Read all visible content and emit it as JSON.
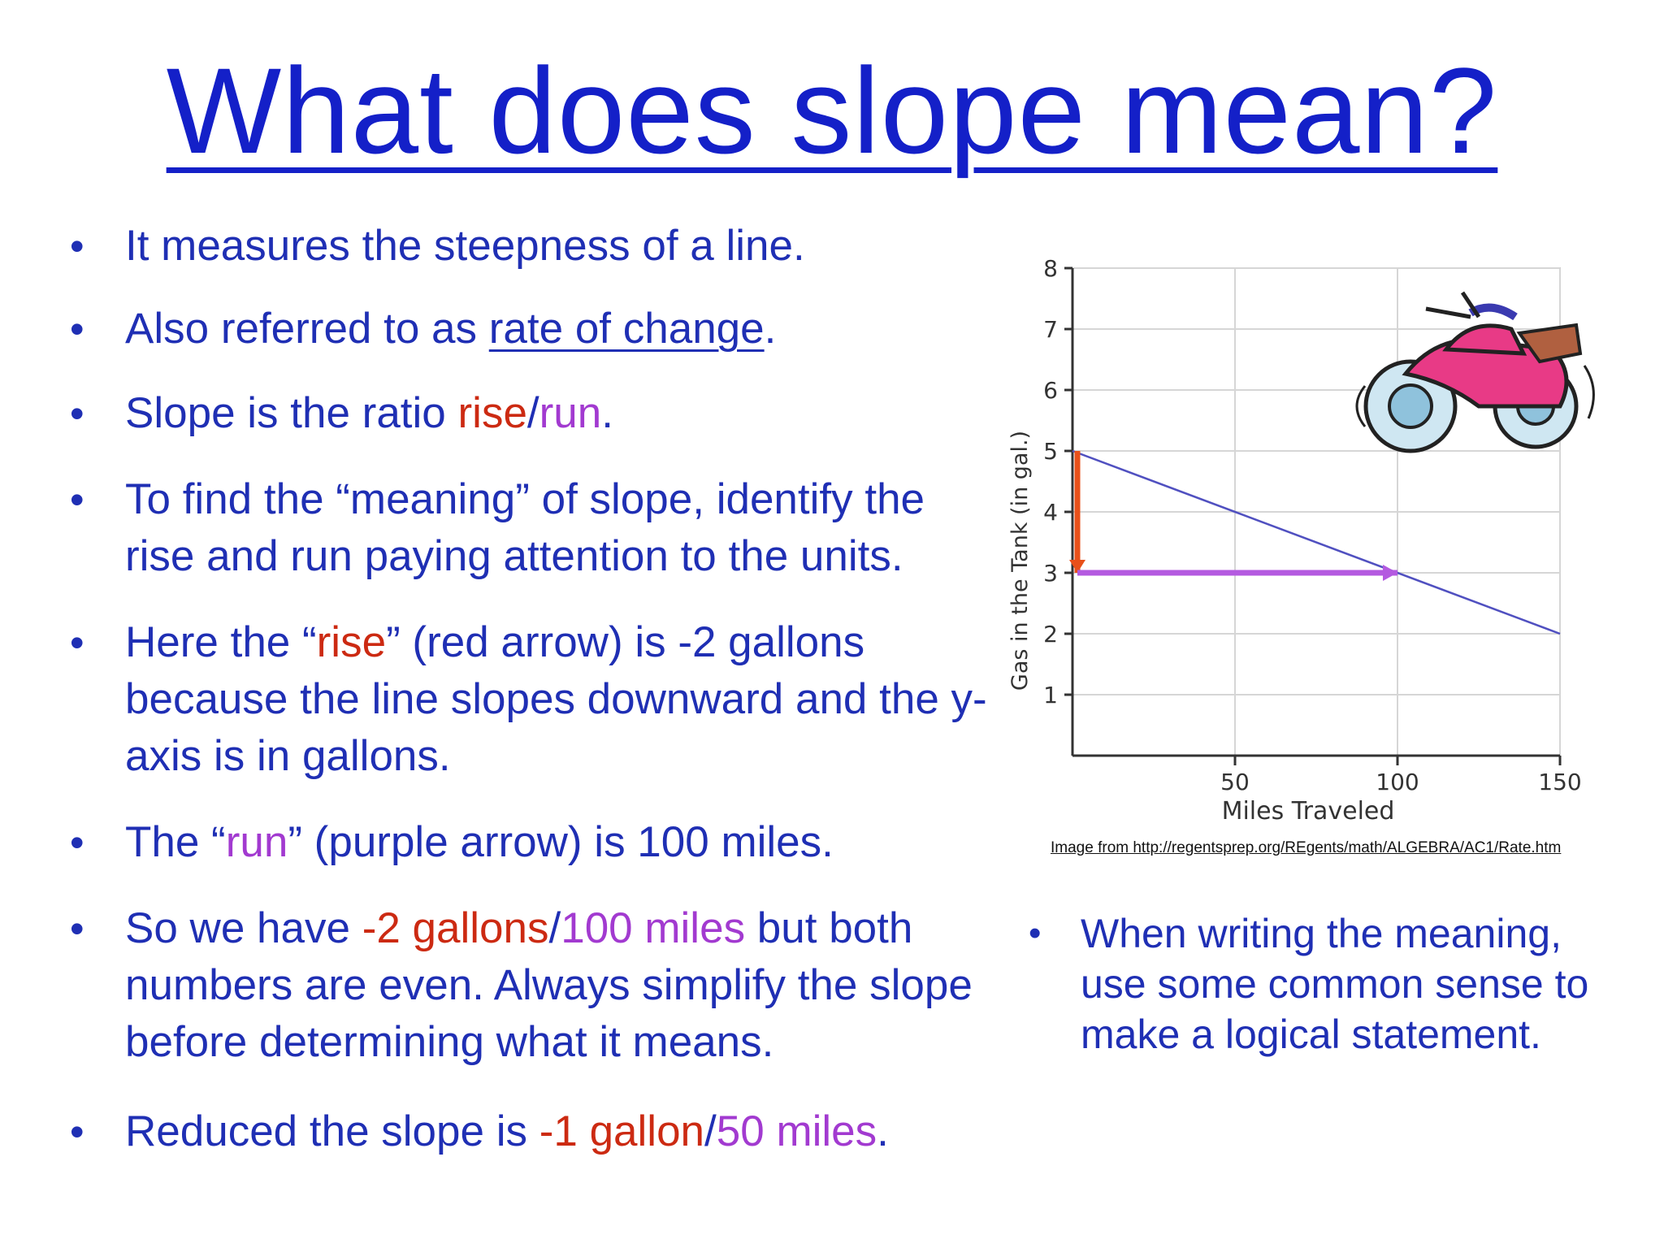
{
  "title": "What does slope mean?",
  "bullets": {
    "b1": "It measures the steepness of a line.",
    "b2_pre": "Also referred to as ",
    "b2_ul": "rate of change",
    "b2_post": ".",
    "b3_pre": "Slope is the ratio ",
    "b3_rise": "rise",
    "b3_slash": "/",
    "b3_run": "run",
    "b3_post": ".",
    "b4": "To find the “meaning” of slope, identify the rise and run paying attention to the units.",
    "b5_pre": "Here the “",
    "b5_rise": "rise",
    "b5_post": "” (red arrow) is -2 gallons because the line slopes downward and the y-axis is in gallons.",
    "b6_pre": "The “",
    "b6_run": "run",
    "b6_post": "” (purple arrow) is 100 miles.",
    "b7_pre": "So we have ",
    "b7_red": "-2 gallons",
    "b7_slash": "/",
    "b7_purple": "100 miles",
    "b7_post": " but both numbers are even.  Always simplify the slope before determining what it means.",
    "b8_pre": "Reduced the slope is ",
    "b8_red": "-1 gallon",
    "b8_slash": "/",
    "b8_purple": "50 miles",
    "b8_post": "."
  },
  "credit": "Image from http://regentsprep.org/REgents/math/ALGEBRA/AC1/Rate.htm",
  "side_bullet": "When writing the meaning, use some common sense to make a logical statement.",
  "colors": {
    "title": "#1420c8",
    "text": "#1f2fb4",
    "rise": "#cc2a12",
    "run": "#a23ad0",
    "line": "#5050c0"
  },
  "chart_data": {
    "type": "line",
    "xlabel": "Miles Traveled",
    "ylabel": "Gas in the Tank  (in gal.)",
    "xlim": [
      0,
      150
    ],
    "ylim": [
      0,
      8
    ],
    "x_ticks": [
      50,
      100,
      150
    ],
    "y_ticks": [
      1,
      2,
      3,
      4,
      5,
      6,
      7,
      8
    ],
    "grid": true,
    "series": [
      {
        "x": [
          0,
          150
        ],
        "y": [
          5,
          2
        ]
      }
    ],
    "annotations": [
      {
        "type": "arrow",
        "color": "#e8501a",
        "from": [
          0,
          5
        ],
        "to": [
          0,
          3
        ]
      },
      {
        "type": "arrow",
        "color": "#b45ae0",
        "from": [
          0,
          3
        ],
        "to": [
          100,
          3
        ]
      }
    ],
    "picture": "motorcycle"
  }
}
